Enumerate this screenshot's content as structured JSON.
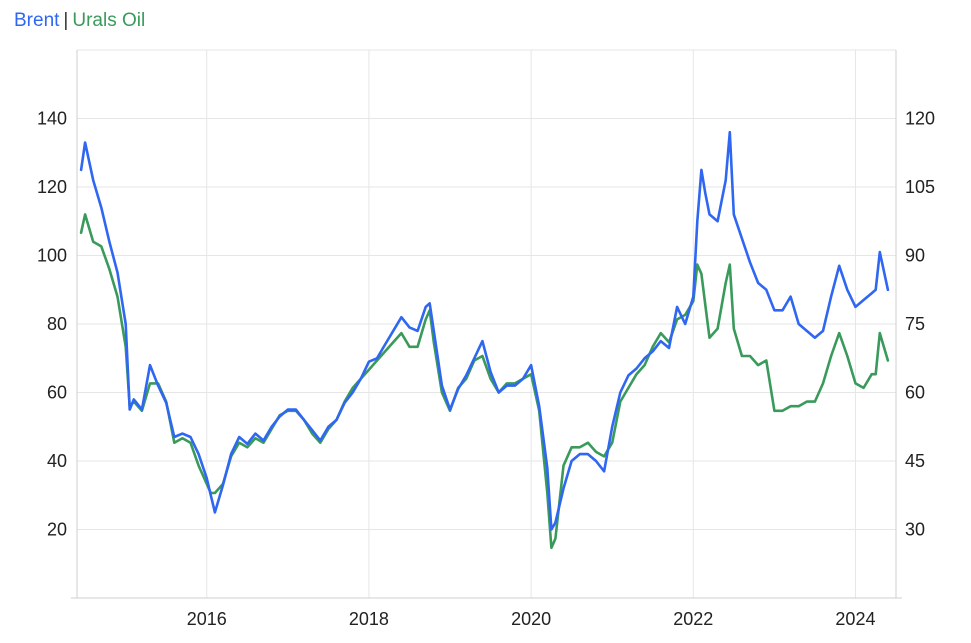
{
  "legend": {
    "brent": "Brent",
    "separator": "|",
    "urals": "Urals Oil"
  },
  "colors": {
    "brent": "#2f66f2",
    "urals": "#3a9a5b",
    "grid": "#e6e6e6"
  },
  "chart_data": {
    "type": "line",
    "title": "",
    "xlabel": "",
    "ylabel_left": "",
    "ylabel_right": "",
    "x_ticks": [
      "2016",
      "2018",
      "2020",
      "2022",
      "2024"
    ],
    "y_left_ticks": [
      "20",
      "40",
      "60",
      "80",
      "100",
      "120",
      "140"
    ],
    "y_right_ticks": [
      "30",
      "45",
      "60",
      "75",
      "90",
      "105",
      "120"
    ],
    "xlim": [
      2014.4,
      2024.5
    ],
    "ylim_left": [
      0,
      160
    ],
    "ylim_right": [
      15,
      135
    ],
    "grid": true,
    "legend_position": "top-left",
    "series": [
      {
        "name": "Brent",
        "axis": "left",
        "x": [
          2014.45,
          2014.5,
          2014.6,
          2014.7,
          2014.8,
          2014.9,
          2015.0,
          2015.05,
          2015.1,
          2015.2,
          2015.3,
          2015.4,
          2015.5,
          2015.6,
          2015.7,
          2015.8,
          2015.9,
          2016.0,
          2016.05,
          2016.1,
          2016.2,
          2016.3,
          2016.4,
          2016.5,
          2016.6,
          2016.7,
          2016.8,
          2016.9,
          2017.0,
          2017.1,
          2017.2,
          2017.3,
          2017.4,
          2017.5,
          2017.6,
          2017.7,
          2017.8,
          2017.9,
          2018.0,
          2018.1,
          2018.2,
          2018.3,
          2018.4,
          2018.5,
          2018.6,
          2018.7,
          2018.75,
          2018.8,
          2018.9,
          2019.0,
          2019.1,
          2019.2,
          2019.3,
          2019.4,
          2019.5,
          2019.6,
          2019.7,
          2019.8,
          2019.9,
          2020.0,
          2020.1,
          2020.2,
          2020.25,
          2020.3,
          2020.4,
          2020.5,
          2020.6,
          2020.7,
          2020.8,
          2020.9,
          2021.0,
          2021.1,
          2021.2,
          2021.3,
          2021.4,
          2021.5,
          2021.6,
          2021.7,
          2021.8,
          2021.9,
          2022.0,
          2022.05,
          2022.1,
          2022.15,
          2022.2,
          2022.3,
          2022.4,
          2022.45,
          2022.5,
          2022.6,
          2022.7,
          2022.8,
          2022.9,
          2023.0,
          2023.1,
          2023.2,
          2023.3,
          2023.4,
          2023.5,
          2023.6,
          2023.7,
          2023.8,
          2023.9,
          2024.0,
          2024.1,
          2024.2,
          2024.25,
          2024.3,
          2024.4
        ],
        "values": [
          125,
          133,
          122,
          114,
          104,
          95,
          80,
          55,
          58,
          55,
          68,
          62,
          57,
          47,
          48,
          47,
          42,
          35,
          30,
          25,
          33,
          42,
          47,
          45,
          48,
          46,
          50,
          53,
          55,
          55,
          52,
          49,
          46,
          50,
          52,
          57,
          60,
          64,
          69,
          70,
          74,
          78,
          82,
          79,
          78,
          85,
          86,
          78,
          62,
          55,
          61,
          65,
          70,
          75,
          66,
          60,
          62,
          62,
          64,
          68,
          56,
          38,
          20,
          22,
          32,
          40,
          42,
          42,
          40,
          37,
          50,
          60,
          65,
          67,
          70,
          72,
          75,
          73,
          85,
          80,
          88,
          110,
          125,
          118,
          112,
          110,
          122,
          136,
          112,
          105,
          98,
          92,
          90,
          84,
          84,
          88,
          80,
          78,
          76,
          78,
          88,
          97,
          90,
          85,
          87,
          89,
          90,
          101,
          90
        ]
      },
      {
        "name": "Urals Oil",
        "axis": "right",
        "x": [
          2014.45,
          2014.5,
          2014.6,
          2014.7,
          2014.8,
          2014.9,
          2015.0,
          2015.05,
          2015.1,
          2015.2,
          2015.3,
          2015.4,
          2015.5,
          2015.6,
          2015.7,
          2015.8,
          2015.9,
          2016.0,
          2016.05,
          2016.1,
          2016.2,
          2016.3,
          2016.4,
          2016.5,
          2016.6,
          2016.7,
          2016.8,
          2016.9,
          2017.0,
          2017.1,
          2017.2,
          2017.3,
          2017.4,
          2017.5,
          2017.6,
          2017.7,
          2017.8,
          2017.9,
          2018.0,
          2018.1,
          2018.2,
          2018.3,
          2018.4,
          2018.5,
          2018.6,
          2018.7,
          2018.75,
          2018.8,
          2018.9,
          2019.0,
          2019.1,
          2019.2,
          2019.3,
          2019.4,
          2019.5,
          2019.6,
          2019.7,
          2019.8,
          2019.9,
          2020.0,
          2020.1,
          2020.2,
          2020.25,
          2020.3,
          2020.4,
          2020.5,
          2020.6,
          2020.7,
          2020.8,
          2020.9,
          2021.0,
          2021.1,
          2021.2,
          2021.3,
          2021.4,
          2021.5,
          2021.6,
          2021.7,
          2021.8,
          2021.9,
          2022.0,
          2022.05,
          2022.1,
          2022.15,
          2022.2,
          2022.3,
          2022.4,
          2022.45,
          2022.5,
          2022.6,
          2022.7,
          2022.8,
          2022.9,
          2023.0,
          2023.1,
          2023.2,
          2023.3,
          2023.4,
          2023.5,
          2023.6,
          2023.7,
          2023.8,
          2023.9,
          2024.0,
          2024.1,
          2024.2,
          2024.25,
          2024.3,
          2024.4
        ],
        "values": [
          95,
          99,
          93,
          92,
          87,
          81,
          70,
          57,
          58,
          56,
          62,
          62,
          58,
          49,
          50,
          49,
          44,
          40,
          38,
          38,
          40,
          46,
          49,
          48,
          50,
          49,
          52,
          55,
          56,
          56,
          54,
          51,
          49,
          52,
          54,
          58,
          61,
          63,
          65,
          67,
          69,
          71,
          73,
          70,
          70,
          76,
          78,
          71,
          60,
          56,
          61,
          63,
          67,
          68,
          63,
          60,
          62,
          62,
          63,
          64,
          56,
          38,
          26,
          28,
          44,
          48,
          48,
          49,
          47,
          46,
          49,
          58,
          61,
          64,
          66,
          70,
          73,
          71,
          76,
          77,
          80,
          88,
          86,
          79,
          72,
          74,
          84,
          88,
          74,
          68,
          68,
          66,
          67,
          56,
          56,
          57,
          57,
          58,
          58,
          62,
          68,
          73,
          68,
          62,
          61,
          64,
          64,
          73,
          67
        ]
      }
    ]
  }
}
